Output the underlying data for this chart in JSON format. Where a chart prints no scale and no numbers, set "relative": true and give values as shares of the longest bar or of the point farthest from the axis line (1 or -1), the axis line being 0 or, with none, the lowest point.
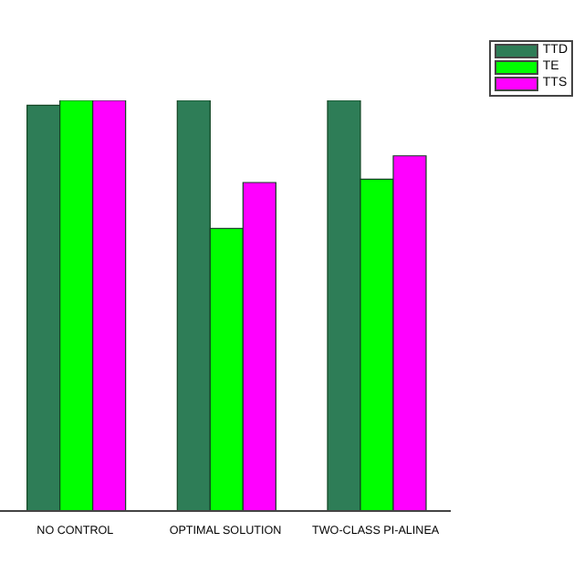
{
  "chart_data": {
    "type": "bar",
    "relative": true,
    "categories": [
      "NO CONTROL",
      "OPTIMAL SOLUTION",
      "TWO-CLASS PI-ALINEA"
    ],
    "series": [
      {
        "name": "TTD",
        "color": "#2e7d57",
        "values": [
          0.988,
          1,
          1
        ]
      },
      {
        "name": "TE",
        "color": "#00ff00",
        "values": [
          1,
          0.688,
          0.808
        ]
      },
      {
        "name": "TTS",
        "color": "#ff00ff",
        "values": [
          1,
          0.8,
          0.865
        ]
      }
    ],
    "legend": "top right",
    "grid": false
  }
}
